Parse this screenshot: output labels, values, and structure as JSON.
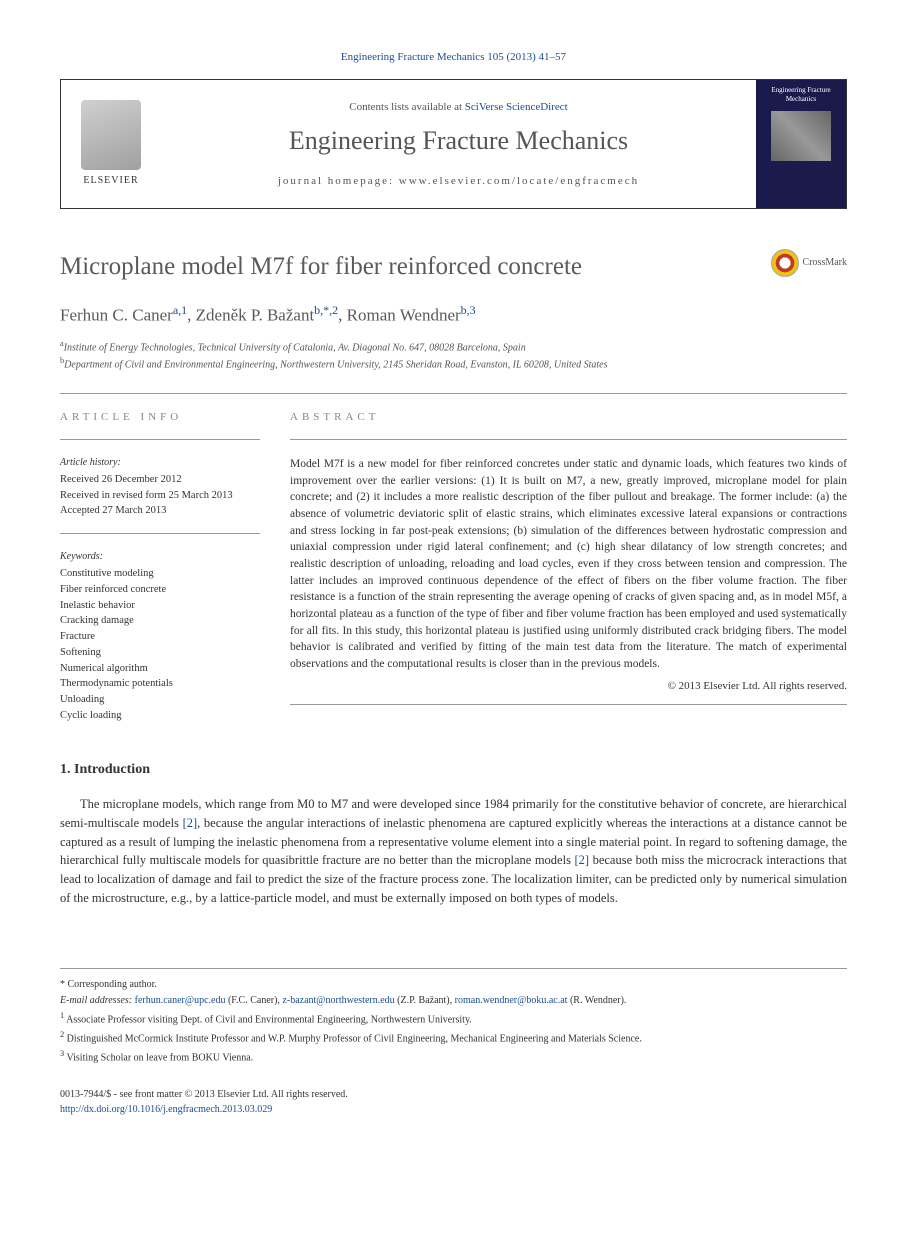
{
  "journal_ref": "Engineering Fracture Mechanics 105 (2013) 41–57",
  "header": {
    "contents_prefix": "Contents lists available at ",
    "contents_link": "SciVerse ScienceDirect",
    "journal_name": "Engineering Fracture Mechanics",
    "homepage_prefix": "journal homepage: ",
    "homepage_url": "www.elsevier.com/locate/engfracmech",
    "publisher": "ELSEVIER",
    "cover_title": "Engineering Fracture Mechanics"
  },
  "title": "Microplane model M7f for fiber reinforced concrete",
  "crossmark_label": "CrossMark",
  "authors_html": "Ferhun C. Caner",
  "author1": {
    "name": "Ferhun C. Caner",
    "sup": "a,1"
  },
  "author2": {
    "name": "Zdeněk P. Bažant",
    "sup": "b,*,2"
  },
  "author3": {
    "name": "Roman Wendner",
    "sup": "b,3"
  },
  "affiliations": {
    "a": "Institute of Energy Technologies, Technical University of Catalonia, Av. Diagonal No. 647, 08028 Barcelona, Spain",
    "b": "Department of Civil and Environmental Engineering, Northwestern University, 2145 Sheridan Road, Evanston, IL 60208, United States"
  },
  "info": {
    "heading": "ARTICLE INFO",
    "history_label": "Article history:",
    "history": "Received 26 December 2012\nReceived in revised form 25 March 2013\nAccepted 27 March 2013",
    "keywords_label": "Keywords:",
    "keywords": [
      "Constitutive modeling",
      "Fiber reinforced concrete",
      "Inelastic behavior",
      "Cracking damage",
      "Fracture",
      "Softening",
      "Numerical algorithm",
      "Thermodynamic potentials",
      "Unloading",
      "Cyclic loading"
    ]
  },
  "abstract": {
    "heading": "ABSTRACT",
    "text": "Model M7f is a new model for fiber reinforced concretes under static and dynamic loads, which features two kinds of improvement over the earlier versions: (1) It is built on M7, a new, greatly improved, microplane model for plain concrete; and (2) it includes a more realistic description of the fiber pullout and breakage. The former include: (a) the absence of volumetric deviatoric split of elastic strains, which eliminates excessive lateral expansions or contractions and stress locking in far post-peak extensions; (b) simulation of the differences between hydrostatic compression and uniaxial compression under rigid lateral confinement; and (c) high shear dilatancy of low strength concretes; and realistic description of unloading, reloading and load cycles, even if they cross between tension and compression. The latter includes an improved continuous dependence of the effect of fibers on the fiber volume fraction. The fiber resistance is a function of the strain representing the average opening of cracks of given spacing and, as in model M5f, a horizontal plateau as a function of the type of fiber and fiber volume fraction has been employed and used systematically for all fits. In this study, this horizontal plateau is justified using uniformly distributed crack bridging fibers. The model behavior is calibrated and verified by fitting of the main test data from the literature. The match of experimental observations and the computational results is closer than in the previous models.",
    "copyright": "© 2013 Elsevier Ltd. All rights reserved."
  },
  "section1": {
    "heading": "1. Introduction",
    "p1_pre": "The microplane models, which range from M0 to M7 and were developed since 1984 primarily for the constitutive behavior of concrete, are hierarchical semi-multiscale models ",
    "ref1": "[2]",
    "p1_mid": ", because the angular interactions of inelastic phenomena are captured explicitly whereas the interactions at a distance cannot be captured as a result of lumping the inelastic phenomena from a representative volume element into a single material point. In regard to softening damage, the hierarchical fully multiscale models for quasibrittle fracture are no better than the microplane models ",
    "ref2": "[2]",
    "p1_post": " because both miss the microcrack interactions that lead to localization of damage and fail to predict the size of the fracture process zone. The localization limiter, can be predicted only by numerical simulation of the microstructure, e.g., by a lattice-particle model, and must be externally imposed on both types of models."
  },
  "footnotes": {
    "corr": "* Corresponding author.",
    "email_label": "E-mail addresses: ",
    "email1": "ferhun.caner@upc.edu",
    "email1_who": " (F.C. Caner), ",
    "email2": "z-bazant@northwestern.edu",
    "email2_who": " (Z.P. Bažant), ",
    "email3": "roman.wendner@boku.ac.at",
    "email3_who": " (R. Wendner).",
    "n1": "Associate Professor visiting Dept. of Civil and Environmental Engineering, Northwestern University.",
    "n2": "Distinguished McCormick Institute Professor and W.P. Murphy Professor of Civil Engineering, Mechanical Engineering and Materials Science.",
    "n3": "Visiting Scholar on leave from BOKU Vienna."
  },
  "footer": {
    "issn": "0013-7944/$ - see front matter © 2013 Elsevier Ltd. All rights reserved.",
    "doi": "http://dx.doi.org/10.1016/j.engfracmech.2013.03.029"
  },
  "colors": {
    "link": "#1a4d8f",
    "heading_gray": "#5a5a5a",
    "text": "#333333"
  }
}
